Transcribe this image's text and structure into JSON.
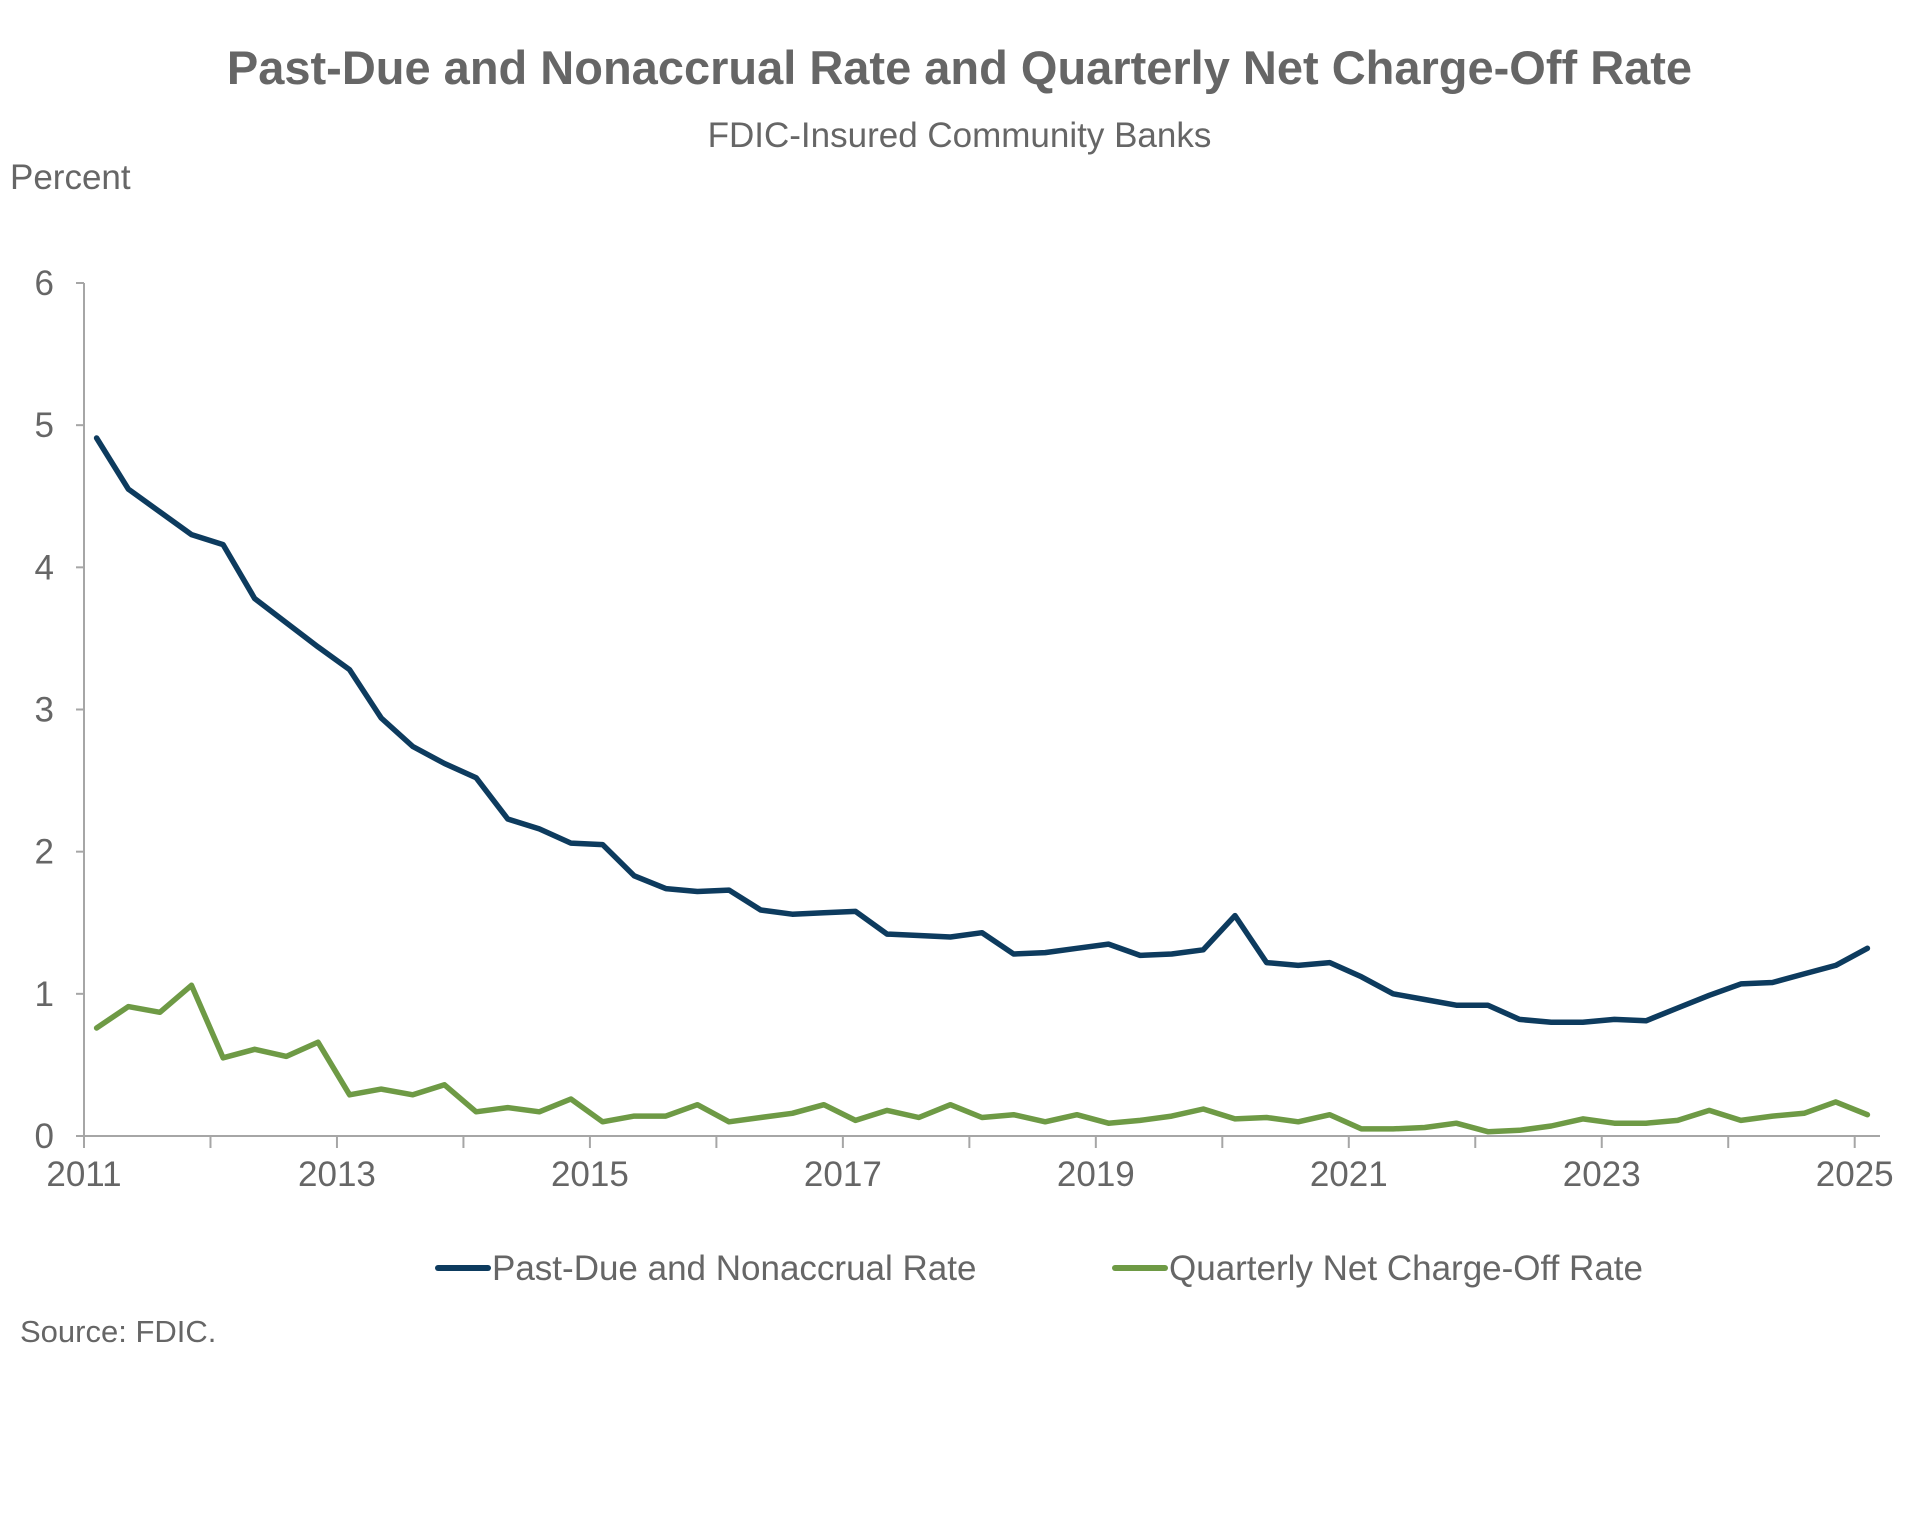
{
  "chart_data": {
    "type": "line",
    "title": "Past-Due and Nonaccrual Rate and Quarterly Net Charge-Off Rate",
    "subtitle": "FDIC-Insured Community Banks",
    "ylabel": "Percent",
    "xlabel": "",
    "ylim": [
      0,
      6
    ],
    "yticks": [
      0,
      1,
      2,
      3,
      4,
      5,
      6
    ],
    "xlim": [
      2011.0,
      2025.2
    ],
    "xticks": [
      2011,
      2013,
      2015,
      2017,
      2019,
      2021,
      2023,
      2025
    ],
    "grid": false,
    "legend_position": "bottom",
    "source": "Source: FDIC.",
    "x": [
      2011.1,
      2011.35,
      2011.6,
      2011.85,
      2012.1,
      2012.35,
      2012.6,
      2012.85,
      2013.1,
      2013.35,
      2013.6,
      2013.85,
      2014.1,
      2014.35,
      2014.6,
      2014.85,
      2015.1,
      2015.35,
      2015.6,
      2015.85,
      2016.1,
      2016.35,
      2016.6,
      2016.85,
      2017.1,
      2017.35,
      2017.6,
      2017.85,
      2018.1,
      2018.35,
      2018.6,
      2018.85,
      2019.1,
      2019.35,
      2019.6,
      2019.85,
      2020.1,
      2020.35,
      2020.6,
      2020.85,
      2021.1,
      2021.35,
      2021.6,
      2021.85,
      2022.1,
      2022.35,
      2022.6,
      2022.85,
      2023.1,
      2023.35,
      2023.6,
      2023.85,
      2024.1,
      2024.35,
      2024.6,
      2024.85,
      2025.1
    ],
    "series": [
      {
        "name": "Past-Due and Nonaccrual Rate",
        "color": "#0d3b5e",
        "values": [
          4.91,
          4.55,
          4.39,
          4.23,
          4.16,
          3.78,
          3.61,
          3.44,
          3.28,
          2.94,
          2.74,
          2.62,
          2.52,
          2.23,
          2.16,
          2.06,
          2.05,
          1.83,
          1.74,
          1.72,
          1.73,
          1.59,
          1.56,
          1.57,
          1.58,
          1.42,
          1.41,
          1.4,
          1.43,
          1.28,
          1.29,
          1.32,
          1.35,
          1.27,
          1.28,
          1.31,
          1.55,
          1.22,
          1.2,
          1.22,
          1.12,
          1.0,
          0.96,
          0.92,
          0.92,
          0.82,
          0.8,
          0.8,
          0.82,
          0.81,
          0.9,
          0.99,
          1.07,
          1.08,
          1.14,
          1.2,
          1.32
        ]
      },
      {
        "name": "Quarterly Net Charge-Off Rate",
        "color": "#6e9a45",
        "values": [
          0.76,
          0.91,
          0.87,
          1.06,
          0.55,
          0.61,
          0.56,
          0.66,
          0.29,
          0.33,
          0.29,
          0.36,
          0.17,
          0.2,
          0.17,
          0.26,
          0.1,
          0.14,
          0.14,
          0.22,
          0.1,
          0.13,
          0.16,
          0.22,
          0.11,
          0.18,
          0.13,
          0.22,
          0.13,
          0.15,
          0.1,
          0.15,
          0.09,
          0.11,
          0.14,
          0.19,
          0.12,
          0.13,
          0.1,
          0.15,
          0.05,
          0.05,
          0.06,
          0.09,
          0.03,
          0.04,
          0.07,
          0.12,
          0.09,
          0.09,
          0.11,
          0.18,
          0.11,
          0.14,
          0.16,
          0.24,
          0.15
        ]
      }
    ]
  }
}
